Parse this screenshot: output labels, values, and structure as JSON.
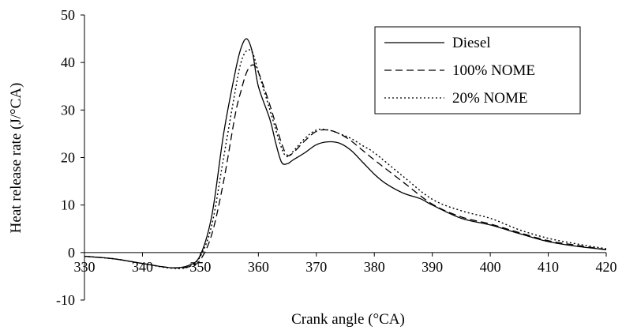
{
  "chart_data": {
    "type": "line",
    "xlabel": "Crank angle (°CA)",
    "ylabel": "Heat release rate (J/°CA)",
    "xlim": [
      330,
      420
    ],
    "ylim": [
      -10,
      50
    ],
    "xticks": [
      330,
      340,
      350,
      360,
      370,
      380,
      390,
      400,
      410,
      420
    ],
    "yticks": [
      -10,
      0,
      10,
      20,
      30,
      40,
      50
    ],
    "grid": false,
    "legend": "top-right",
    "series": [
      {
        "name": "Diesel",
        "style": "solid",
        "points": [
          [
            330,
            -0.8
          ],
          [
            335,
            -1.3
          ],
          [
            340,
            -2.3
          ],
          [
            345,
            -3.2
          ],
          [
            348,
            -2.7
          ],
          [
            350,
            -0.5
          ],
          [
            352,
            8
          ],
          [
            354,
            25
          ],
          [
            356,
            38
          ],
          [
            357,
            43
          ],
          [
            358,
            45
          ],
          [
            359,
            42
          ],
          [
            360,
            35
          ],
          [
            362,
            28
          ],
          [
            363,
            23
          ],
          [
            364,
            19
          ],
          [
            365,
            18.7
          ],
          [
            366,
            19.5
          ],
          [
            368,
            21
          ],
          [
            370,
            22.7
          ],
          [
            372,
            23.3
          ],
          [
            374,
            23
          ],
          [
            376,
            21.5
          ],
          [
            378,
            19
          ],
          [
            380,
            16.5
          ],
          [
            382,
            14.5
          ],
          [
            385,
            12.5
          ],
          [
            388,
            11.3
          ],
          [
            390,
            10
          ],
          [
            395,
            7.2
          ],
          [
            400,
            5.8
          ],
          [
            405,
            4
          ],
          [
            410,
            2.3
          ],
          [
            415,
            1.3
          ],
          [
            420,
            0.6
          ]
        ]
      },
      {
        "name": "100% NOME",
        "style": "dashed",
        "points": [
          [
            330,
            -0.8
          ],
          [
            335,
            -1.3
          ],
          [
            340,
            -2.3
          ],
          [
            345,
            -3.2
          ],
          [
            348,
            -3
          ],
          [
            350,
            -1.5
          ],
          [
            352,
            4
          ],
          [
            354,
            15
          ],
          [
            356,
            29
          ],
          [
            357,
            34
          ],
          [
            358,
            38
          ],
          [
            359,
            39.5
          ],
          [
            360,
            38
          ],
          [
            362,
            31
          ],
          [
            364,
            23
          ],
          [
            365,
            20.5
          ],
          [
            366,
            21
          ],
          [
            368,
            23.5
          ],
          [
            370,
            25.5
          ],
          [
            372,
            25.8
          ],
          [
            374,
            25
          ],
          [
            376,
            23.5
          ],
          [
            378,
            21.5
          ],
          [
            380,
            19.5
          ],
          [
            385,
            14.8
          ],
          [
            390,
            10.2
          ],
          [
            395,
            7.5
          ],
          [
            400,
            6
          ],
          [
            405,
            4.2
          ],
          [
            410,
            2.5
          ],
          [
            415,
            1.5
          ],
          [
            420,
            0.6
          ]
        ]
      },
      {
        "name": "20% NOME",
        "style": "dotted",
        "points": [
          [
            330,
            -0.8
          ],
          [
            335,
            -1.3
          ],
          [
            340,
            -2.3
          ],
          [
            345,
            -3.3
          ],
          [
            348,
            -3
          ],
          [
            350,
            -0.8
          ],
          [
            352,
            6
          ],
          [
            354,
            20
          ],
          [
            356,
            34
          ],
          [
            357,
            40
          ],
          [
            358,
            42.5
          ],
          [
            359,
            42
          ],
          [
            360,
            38
          ],
          [
            362,
            30
          ],
          [
            364,
            22
          ],
          [
            365,
            20.2
          ],
          [
            366,
            21.3
          ],
          [
            368,
            24
          ],
          [
            370,
            25.8
          ],
          [
            372,
            25.8
          ],
          [
            374,
            25
          ],
          [
            376,
            24
          ],
          [
            378,
            22.5
          ],
          [
            380,
            21
          ],
          [
            385,
            16
          ],
          [
            390,
            11.2
          ],
          [
            395,
            8.8
          ],
          [
            400,
            7.2
          ],
          [
            405,
            4.8
          ],
          [
            410,
            3
          ],
          [
            415,
            1.8
          ],
          [
            420,
            0.8
          ]
        ]
      }
    ]
  }
}
